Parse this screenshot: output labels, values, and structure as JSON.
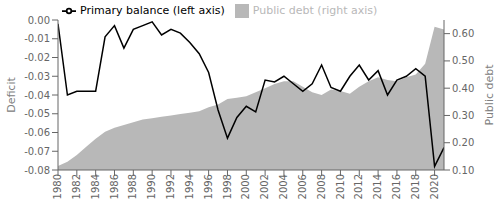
{
  "chart_data": {
    "type": "line",
    "x": [
      1980,
      1981,
      1982,
      1983,
      1984,
      1985,
      1986,
      1987,
      1988,
      1989,
      1990,
      1991,
      1992,
      1993,
      1994,
      1995,
      1996,
      1997,
      1998,
      1999,
      2000,
      2001,
      2002,
      2003,
      2004,
      2005,
      2006,
      2007,
      2008,
      2009,
      2010,
      2011,
      2012,
      2013,
      2014,
      2015,
      2016,
      2017,
      2018,
      2019,
      2020,
      2021
    ],
    "xlim": [
      1980,
      2021
    ],
    "xticks": [
      1980,
      1982,
      1984,
      1986,
      1988,
      1990,
      1992,
      1994,
      1996,
      1998,
      2000,
      2002,
      2004,
      2006,
      2008,
      2010,
      2012,
      2014,
      2016,
      2018,
      2020
    ],
    "ylim": [
      -0.08,
      0.0
    ],
    "yticks": [
      -0.08,
      -0.07,
      -0.06,
      -0.05,
      -0.04,
      -0.03,
      -0.02,
      -0.01,
      {
        "value": 0.0,
        "label": "0.00"
      }
    ],
    "y2lim": [
      0.1,
      0.65
    ],
    "y2ticks": [
      {
        "value": 0.1,
        "label": "0.10"
      },
      {
        "value": 0.2,
        "label": "0.20"
      },
      {
        "value": 0.3,
        "label": "0.30"
      },
      {
        "value": 0.4,
        "label": "0.40"
      },
      {
        "value": 0.5,
        "label": "0.50"
      },
      {
        "value": 0.6,
        "label": "0.60"
      }
    ],
    "ylabel": "Deficit",
    "y2label": "Public debt",
    "legend": "upper left",
    "grid": false,
    "series": [
      {
        "name": "Public debt (right axis)",
        "type": "area",
        "axis": "y2",
        "color": "#b8b8b8",
        "values": [
          0.115,
          0.13,
          0.155,
          0.185,
          0.215,
          0.24,
          0.255,
          0.265,
          0.275,
          0.285,
          0.29,
          0.295,
          0.3,
          0.305,
          0.31,
          0.315,
          0.33,
          0.34,
          0.36,
          0.365,
          0.37,
          0.385,
          0.4,
          0.415,
          0.425,
          0.425,
          0.405,
          0.385,
          0.375,
          0.395,
          0.39,
          0.38,
          0.405,
          0.425,
          0.44,
          0.43,
          0.425,
          0.44,
          0.45,
          0.49,
          0.625,
          0.615
        ]
      },
      {
        "name": "Primary balance (left axis)",
        "type": "line",
        "color": "#000000",
        "values": [
          -0.002,
          -0.04,
          -0.038,
          -0.038,
          -0.038,
          -0.009,
          -0.003,
          -0.015,
          -0.005,
          -0.003,
          -0.001,
          -0.008,
          -0.005,
          -0.007,
          -0.012,
          -0.018,
          -0.028,
          -0.048,
          -0.063,
          -0.052,
          -0.046,
          -0.049,
          -0.032,
          -0.033,
          -0.03,
          -0.034,
          -0.038,
          -0.034,
          -0.024,
          -0.036,
          -0.038,
          -0.03,
          -0.024,
          -0.032,
          -0.027,
          -0.04,
          -0.032,
          -0.03,
          -0.026,
          -0.03,
          -0.078,
          -0.068
        ]
      }
    ]
  }
}
